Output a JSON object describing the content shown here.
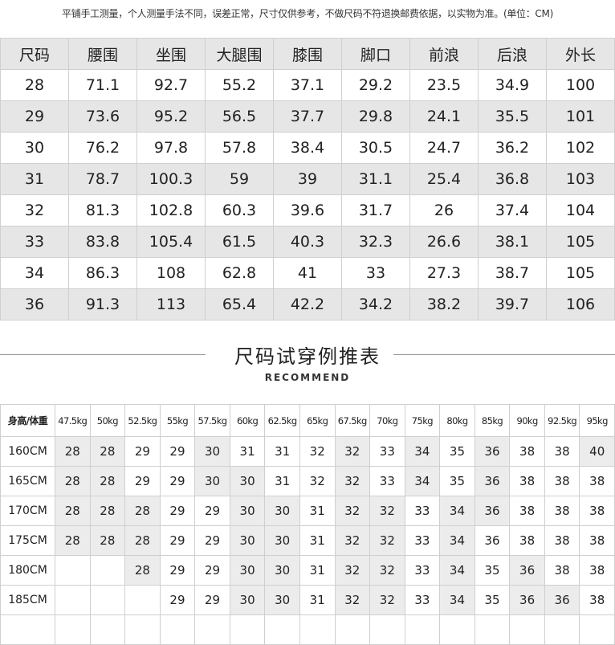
{
  "note": "平铺手工测量，个人测量手法不同，误差正常，尺寸仅供参考，不做尺码不符退换邮费依据，以实物为准。(单位：CM)",
  "size_table": {
    "headers": [
      "尺码",
      "腰围",
      "坐围",
      "大腿围",
      "膝围",
      "脚口",
      "前浪",
      "后浪",
      "外长"
    ],
    "rows": [
      [
        "28",
        "71.1",
        "92.7",
        "55.2",
        "37.1",
        "29.2",
        "23.5",
        "34.9",
        "100"
      ],
      [
        "29",
        "73.6",
        "95.2",
        "56.5",
        "37.7",
        "29.8",
        "24.1",
        "35.5",
        "101"
      ],
      [
        "30",
        "76.2",
        "97.8",
        "57.8",
        "38.4",
        "30.5",
        "24.7",
        "36.2",
        "102"
      ],
      [
        "31",
        "78.7",
        "100.3",
        "59",
        "39",
        "31.1",
        "25.4",
        "36.8",
        "103"
      ],
      [
        "32",
        "81.3",
        "102.8",
        "60.3",
        "39.6",
        "31.7",
        "26",
        "37.4",
        "104"
      ],
      [
        "33",
        "83.8",
        "105.4",
        "61.5",
        "40.3",
        "32.3",
        "26.6",
        "38.1",
        "105"
      ],
      [
        "34",
        "86.3",
        "108",
        "62.8",
        "41",
        "33",
        "27.3",
        "38.7",
        "105"
      ],
      [
        "36",
        "91.3",
        "113",
        "65.4",
        "42.2",
        "34.2",
        "38.2",
        "39.7",
        "106"
      ]
    ]
  },
  "recommend": {
    "title": "尺码试穿例推表",
    "subtitle": "RECOMMEND",
    "corner": "身高/体重",
    "weights": [
      "47.5kg",
      "50kg",
      "52.5kg",
      "55kg",
      "57.5kg",
      "60kg",
      "62.5kg",
      "65kg",
      "67.5kg",
      "70kg",
      "75kg",
      "80kg",
      "85kg",
      "90kg",
      "92.5kg",
      "95kg"
    ],
    "rows": [
      {
        "height": "160CM",
        "values": [
          "28",
          "28",
          "29",
          "29",
          "30",
          "31",
          "31",
          "32",
          "32",
          "33",
          "34",
          "35",
          "36",
          "38",
          "38",
          "40"
        ],
        "shaded": [
          1,
          1,
          0,
          0,
          1,
          0,
          0,
          0,
          1,
          0,
          1,
          0,
          1,
          0,
          0,
          1
        ]
      },
      {
        "height": "165CM",
        "values": [
          "28",
          "28",
          "29",
          "29",
          "30",
          "30",
          "31",
          "32",
          "32",
          "33",
          "34",
          "35",
          "36",
          "38",
          "38",
          "38"
        ],
        "shaded": [
          1,
          1,
          0,
          0,
          1,
          1,
          0,
          0,
          1,
          0,
          1,
          0,
          1,
          0,
          0,
          0
        ]
      },
      {
        "height": "170CM",
        "values": [
          "28",
          "28",
          "28",
          "29",
          "29",
          "30",
          "30",
          "31",
          "32",
          "32",
          "33",
          "34",
          "36",
          "38",
          "38",
          "38"
        ],
        "shaded": [
          1,
          1,
          1,
          0,
          0,
          1,
          1,
          0,
          1,
          1,
          0,
          1,
          1,
          0,
          0,
          0
        ]
      },
      {
        "height": "175CM",
        "values": [
          "28",
          "28",
          "28",
          "29",
          "29",
          "30",
          "30",
          "31",
          "32",
          "32",
          "33",
          "34",
          "36",
          "38",
          "38",
          "38"
        ],
        "shaded": [
          1,
          1,
          1,
          0,
          0,
          1,
          1,
          0,
          1,
          1,
          0,
          1,
          0,
          0,
          0,
          0
        ]
      },
      {
        "height": "180CM",
        "values": [
          "",
          "",
          "28",
          "29",
          "29",
          "30",
          "30",
          "31",
          "32",
          "32",
          "33",
          "34",
          "35",
          "36",
          "38",
          "38"
        ],
        "shaded": [
          0,
          0,
          1,
          0,
          0,
          1,
          1,
          0,
          1,
          1,
          0,
          1,
          0,
          1,
          0,
          0
        ]
      },
      {
        "height": "185CM",
        "values": [
          "",
          "",
          "",
          "29",
          "29",
          "30",
          "30",
          "31",
          "32",
          "32",
          "33",
          "34",
          "35",
          "36",
          "36",
          "38"
        ],
        "shaded": [
          0,
          0,
          0,
          0,
          0,
          1,
          1,
          0,
          1,
          1,
          0,
          1,
          0,
          1,
          1,
          0
        ]
      },
      {
        "height": "",
        "values": [
          "",
          "",
          "",
          "",
          "",
          "",
          "",
          "",
          "",
          "",
          "",
          "",
          "",
          "",
          "",
          ""
        ],
        "shaded": [
          0,
          0,
          0,
          0,
          0,
          0,
          0,
          0,
          0,
          0,
          0,
          0,
          0,
          0,
          0,
          0
        ]
      }
    ]
  }
}
